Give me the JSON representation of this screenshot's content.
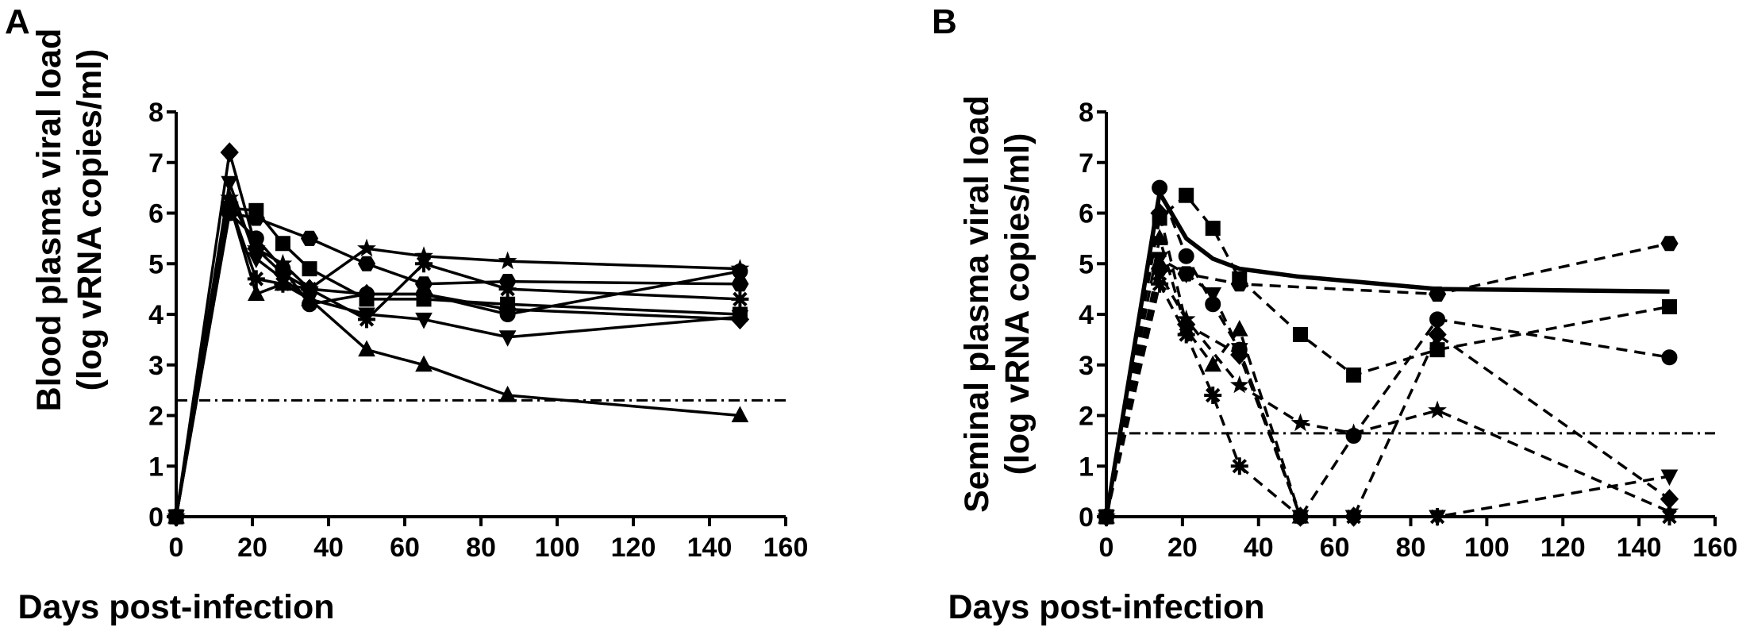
{
  "chart_data": [
    {
      "type": "line",
      "panel_label": "A",
      "xlabel": "Days post-infection",
      "ylabel_line1": "Blood plasma viral load",
      "ylabel_line2": "(log vRNA copies/ml)",
      "xlim": [
        0,
        160
      ],
      "ylim": [
        0,
        8
      ],
      "xticks": [
        0,
        20,
        40,
        60,
        80,
        100,
        120,
        140,
        160
      ],
      "yticks": [
        0,
        1,
        2,
        3,
        4,
        5,
        6,
        7,
        8
      ],
      "grid": false,
      "threshold": 2.3,
      "series": [
        {
          "marker": "diamond",
          "dashed": false,
          "x": [
            0,
            14,
            21,
            28,
            35,
            50,
            65,
            87,
            148
          ],
          "y": [
            0,
            7.2,
            5.3,
            4.8,
            4.5,
            4.4,
            4.4,
            4.1,
            3.9
          ]
        },
        {
          "marker": "square",
          "dashed": false,
          "x": [
            0,
            14,
            21,
            28,
            35,
            50,
            65,
            87,
            148
          ],
          "y": [
            0,
            6.1,
            6.05,
            5.4,
            4.9,
            4.3,
            4.3,
            4.2,
            4.0
          ]
        },
        {
          "marker": "hexagon",
          "dashed": false,
          "x": [
            0,
            14,
            21,
            35,
            50,
            65,
            87,
            148
          ],
          "y": [
            0,
            6.0,
            5.9,
            5.5,
            5.0,
            4.6,
            4.65,
            4.6
          ]
        },
        {
          "marker": "circle",
          "dashed": false,
          "x": [
            0,
            14,
            21,
            28,
            35,
            50,
            65,
            87,
            148
          ],
          "y": [
            0,
            6.0,
            5.5,
            4.9,
            4.2,
            4.4,
            4.4,
            4.0,
            4.85
          ]
        },
        {
          "marker": "star",
          "dashed": false,
          "x": [
            0,
            14,
            21,
            28,
            35,
            50,
            65,
            87,
            148
          ],
          "y": [
            0,
            6.3,
            5.3,
            5.0,
            4.5,
            5.3,
            5.15,
            5.05,
            4.9
          ]
        },
        {
          "marker": "asterisk",
          "dashed": false,
          "x": [
            0,
            14,
            21,
            28,
            35,
            50,
            65,
            87,
            148
          ],
          "y": [
            0,
            6.2,
            4.7,
            4.6,
            4.5,
            3.9,
            5.0,
            4.5,
            4.3
          ]
        },
        {
          "marker": "triangle-down",
          "dashed": false,
          "x": [
            0,
            14,
            21,
            28,
            35,
            50,
            65,
            87,
            148
          ],
          "y": [
            0,
            6.6,
            5.1,
            4.7,
            4.3,
            4.0,
            3.9,
            3.55,
            3.95
          ]
        },
        {
          "marker": "triangle-up",
          "dashed": false,
          "x": [
            0,
            14,
            21,
            28,
            35,
            50,
            65,
            87,
            148
          ],
          "y": [
            0,
            6.2,
            4.4,
            4.6,
            4.3,
            3.3,
            3.0,
            2.4,
            2.0
          ]
        }
      ]
    },
    {
      "type": "line",
      "panel_label": "B",
      "xlabel": "Days post-infection",
      "ylabel_line1": "Seminal plasma viral load",
      "ylabel_line2": "(log vRNA copies/ml)",
      "xlim": [
        0,
        160
      ],
      "ylim": [
        0,
        8
      ],
      "xticks": [
        0,
        20,
        40,
        60,
        80,
        100,
        120,
        140,
        160
      ],
      "yticks": [
        0,
        1,
        2,
        3,
        4,
        5,
        6,
        7,
        8
      ],
      "grid": false,
      "threshold": 1.65,
      "series": [
        {
          "marker": "none",
          "dashed": false,
          "heavy": true,
          "x": [
            0,
            14,
            21,
            28,
            35,
            50,
            65,
            87,
            148
          ],
          "y": [
            0,
            6.4,
            5.5,
            5.1,
            4.9,
            4.75,
            4.65,
            4.5,
            4.45
          ]
        },
        {
          "marker": "hexagon",
          "dashed": true,
          "x": [
            0,
            14,
            21,
            35,
            87,
            148
          ],
          "y": [
            0,
            4.9,
            4.8,
            4.6,
            4.4,
            5.4
          ]
        },
        {
          "marker": "square",
          "dashed": true,
          "x": [
            0,
            14,
            21,
            28,
            35,
            51,
            65,
            87,
            148
          ],
          "y": [
            0,
            5.9,
            6.35,
            5.7,
            4.7,
            3.6,
            2.8,
            3.3,
            4.15
          ]
        },
        {
          "marker": "circle",
          "dashed": true,
          "x": [
            0,
            14,
            21,
            28,
            35,
            51,
            65,
            87,
            148
          ],
          "y": [
            0,
            6.5,
            5.15,
            4.2,
            3.3,
            0,
            1.6,
            3.9,
            3.15
          ]
        },
        {
          "marker": "triangle-up",
          "dashed": true,
          "x": [
            0,
            14,
            21,
            28,
            35,
            51
          ],
          "y": [
            0,
            5.5,
            3.7,
            3.0,
            3.7,
            0
          ]
        },
        {
          "marker": "triangle-down",
          "dashed": true,
          "x": [
            0,
            14,
            21,
            28,
            35,
            51,
            65,
            87,
            148
          ],
          "y": [
            0,
            5.1,
            4.8,
            4.4,
            3.3,
            0,
            0,
            0,
            0.8
          ]
        },
        {
          "marker": "diamond",
          "dashed": true,
          "x": [
            0,
            14,
            21,
            35,
            51,
            65,
            87,
            148
          ],
          "y": [
            0,
            6.0,
            3.8,
            3.2,
            0,
            0,
            3.6,
            0.35
          ]
        },
        {
          "marker": "asterisk",
          "dashed": true,
          "x": [
            0,
            14,
            21,
            28,
            35,
            51,
            65,
            87,
            148
          ],
          "y": [
            0,
            4.6,
            3.6,
            2.4,
            1.0,
            0,
            0,
            0,
            0
          ]
        },
        {
          "marker": "star",
          "dashed": true,
          "x": [
            0,
            14,
            21,
            35,
            51,
            65,
            87,
            148
          ],
          "y": [
            0,
            4.8,
            3.9,
            2.6,
            1.85,
            1.65,
            2.1,
            0.1
          ]
        }
      ]
    }
  ]
}
